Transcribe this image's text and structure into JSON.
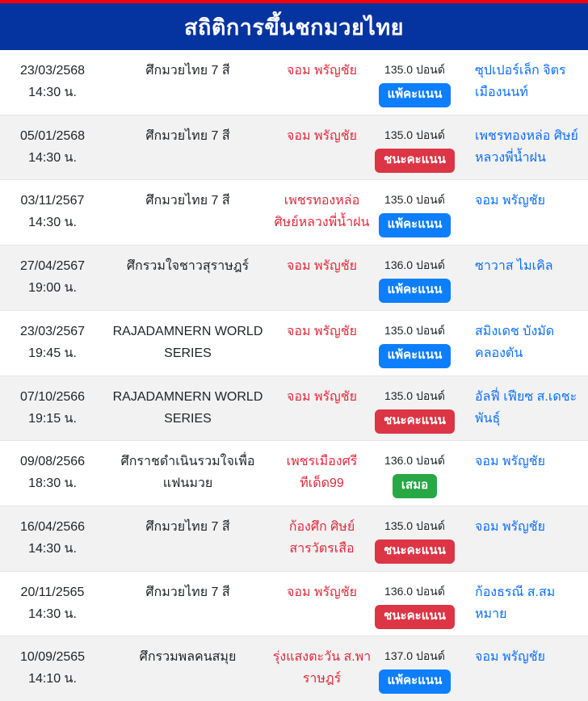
{
  "header": {
    "title": "สถิติการขึ้นชกมวยไทย"
  },
  "colors": {
    "accent_red": "#f70009",
    "header_bg": "#0534a0",
    "row_alt_bg": "#f2f2f2",
    "fighter_red": "#e02a3c",
    "opponent_blue": "#0d6efd",
    "result": {
      "win": "#dc3545",
      "lose": "#0d7efd",
      "draw": "#28a745"
    }
  },
  "table": {
    "rows": [
      {
        "date": "23/03/2568",
        "time": "14:30 น.",
        "event": "ศึกมวยไทย 7 สี",
        "fighter": "จอม พรัญชัย",
        "weight": "135.0 ปอนด์",
        "result": {
          "label": "แพ้คะแนน",
          "type": "lose"
        },
        "opponent": "ซุปเปอร์เล็ก จิตรเมืองนนท์"
      },
      {
        "date": "05/01/2568",
        "time": "14:30 น.",
        "event": "ศึกมวยไทย 7 สี",
        "fighter": "จอม พรัญชัย",
        "weight": "135.0 ปอนด์",
        "result": {
          "label": "ชนะคะแนน",
          "type": "win"
        },
        "opponent": "เพชรทองหล่อ ศิษย์หลวงพี่น้ำฝน"
      },
      {
        "date": "03/11/2567",
        "time": "14:30 น.",
        "event": "ศึกมวยไทย 7 สี",
        "fighter": "เพชรทองหล่อ ศิษย์หลวงพี่น้ำฝน",
        "weight": "135.0 ปอนด์",
        "result": {
          "label": "แพ้คะแนน",
          "type": "lose"
        },
        "opponent": "จอม พรัญชัย"
      },
      {
        "date": "27/04/2567",
        "time": "19:00 น.",
        "event": "ศึกรวมใจชาวสุราษฎร์",
        "fighter": "จอม พรัญชัย",
        "weight": "136.0 ปอนด์",
        "result": {
          "label": "แพ้คะแนน",
          "type": "lose"
        },
        "opponent": "ซาวาส ไมเคิล"
      },
      {
        "date": "23/03/2567",
        "time": "19:45 น.",
        "event": "RAJADAMNERN WORLD SERIES",
        "fighter": "จอม พรัญชัย",
        "weight": "135.0 ปอนด์",
        "result": {
          "label": "แพ้คะแนน",
          "type": "lose"
        },
        "opponent": "สมิงเดช บังมัด คลองตัน"
      },
      {
        "date": "07/10/2566",
        "time": "19:15 น.",
        "event": "RAJADAMNERN WORLD SERIES",
        "fighter": "จอม พรัญชัย",
        "weight": "135.0 ปอนด์",
        "result": {
          "label": "ชนะคะแนน",
          "type": "win"
        },
        "opponent": "อัลฟี่ เฟียซ ส.เดชะพันธุ์"
      },
      {
        "date": "09/08/2566",
        "time": "18:30 น.",
        "event": "ศึกราชดำเนินรวมใจเพื่อแฟนมวย",
        "fighter": "เพชรเมืองศรี ทีเด็ด99",
        "weight": "136.0 ปอนด์",
        "result": {
          "label": "เสมอ",
          "type": "draw"
        },
        "opponent": "จอม พรัญชัย"
      },
      {
        "date": "16/04/2566",
        "time": "14:30 น.",
        "event": "ศึกมวยไทย 7 สี",
        "fighter": "ก้องศึก ศิษย์สารวัตรเสือ",
        "weight": "135.0 ปอนด์",
        "result": {
          "label": "ชนะคะแนน",
          "type": "win"
        },
        "opponent": "จอม พรัญชัย"
      },
      {
        "date": "20/11/2565",
        "time": "14:30 น.",
        "event": "ศึกมวยไทย 7 สี",
        "fighter": "จอม พรัญชัย",
        "weight": "136.0 ปอนด์",
        "result": {
          "label": "ชนะคะแนน",
          "type": "win"
        },
        "opponent": "ก้องธรณี ส.สมหมาย"
      },
      {
        "date": "10/09/2565",
        "time": "14:10 น.",
        "event": "ศึกรวมพลคนสมุย",
        "fighter": "รุ่งแสงตะวัน ส.พาราษฎร์",
        "weight": "137.0 ปอนด์",
        "result": {
          "label": "แพ้คะแนน",
          "type": "lose"
        },
        "opponent": "จอม พรัญชัย"
      }
    ]
  }
}
